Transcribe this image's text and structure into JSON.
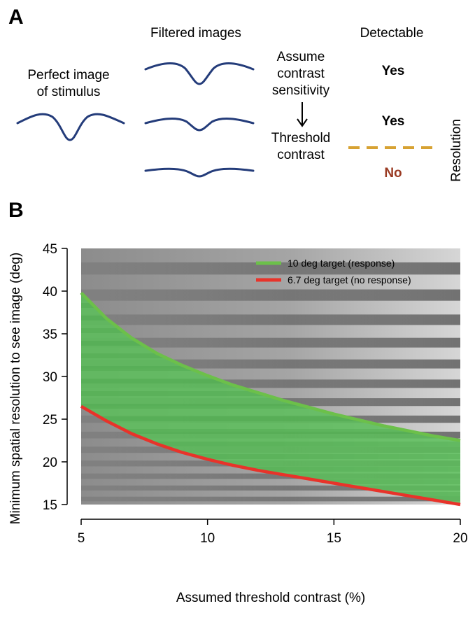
{
  "panel_a": {
    "label": "A",
    "col_filtered": "Filtered images",
    "col_detectable": "Detectable",
    "perfect_line1": "Perfect image",
    "perfect_line2": "of stimulus",
    "assume_line1": "Assume",
    "assume_line2": "contrast",
    "assume_line3": "sensitivity",
    "threshold_line1": "Threshold",
    "threshold_line2": "contrast",
    "yes1": "Yes",
    "yes2": "Yes",
    "no": "No",
    "resolution": "Resolution",
    "colors": {
      "wave": "#243c7a",
      "threshold_line": "#d7a233",
      "no": "#9a3a22"
    }
  },
  "panel_b": {
    "label": "B"
  },
  "chart_data": {
    "type": "line",
    "title": "",
    "xlabel": "Assumed threshold contrast (%)",
    "ylabel": "Minimum spatial resolution to see image (deg)",
    "xlim": [
      5,
      20
    ],
    "ylim": [
      15,
      45
    ],
    "xticks": [
      5,
      10,
      15,
      20
    ],
    "yticks": [
      15,
      20,
      25,
      30,
      35,
      40,
      45
    ],
    "legend_position": "top-right",
    "grid": false,
    "background": "grayscale grating image",
    "x": [
      5,
      6,
      7,
      8,
      9,
      10,
      11,
      12,
      13,
      14,
      15,
      16,
      17,
      18,
      19,
      20
    ],
    "series": [
      {
        "name": "10 deg target (response)",
        "color": "#6cc04a",
        "values": [
          39.8,
          36.8,
          34.5,
          32.7,
          31.3,
          30.1,
          29.0,
          28.1,
          27.2,
          26.4,
          25.6,
          24.9,
          24.2,
          23.6,
          23.0,
          22.5
        ]
      },
      {
        "name": "6.7 deg target (no response)",
        "color": "#e8332a",
        "values": [
          26.5,
          24.8,
          23.3,
          22.1,
          21.1,
          20.3,
          19.6,
          19.0,
          18.5,
          18.0,
          17.5,
          17.0,
          16.5,
          16.0,
          15.5,
          15.0
        ]
      }
    ],
    "fill_between": {
      "color": "#5cc05a"
    }
  }
}
